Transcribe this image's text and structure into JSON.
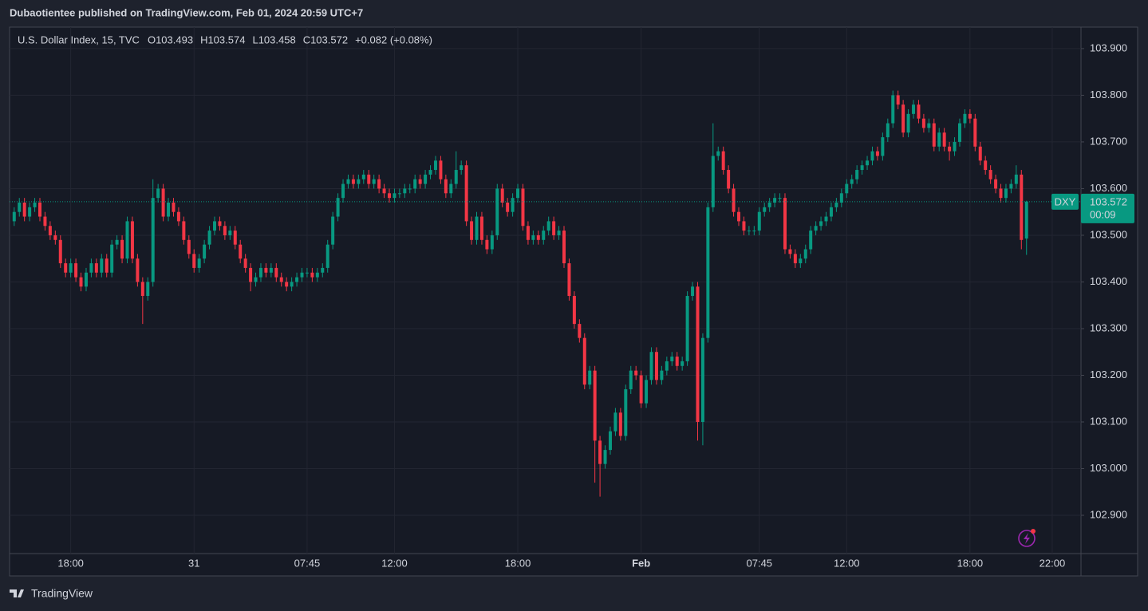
{
  "header": {
    "text": "Dubaotientee published on TradingView.com, Feb 01, 2024 20:59 UTC+7"
  },
  "footer": {
    "brand": "TradingView"
  },
  "chart_data": {
    "type": "candlestick",
    "title": "U.S. Dollar Index, 15, TVC",
    "symbol": "DXY",
    "countdown": "00:09",
    "change": "+0.082 (+0.08%)",
    "ohlc_labels": [
      "O",
      "H",
      "L",
      "C"
    ],
    "up_color": "#089981",
    "down_color": "#f23645",
    "grid": true,
    "ylim": [
      102.818,
      103.946
    ],
    "yticks": [
      {
        "value": 102.9,
        "label": "102.900"
      },
      {
        "value": 103.0,
        "label": "103.000"
      },
      {
        "value": 103.1,
        "label": "103.100"
      },
      {
        "value": 103.2,
        "label": "103.200"
      },
      {
        "value": 103.3,
        "label": "103.300"
      },
      {
        "value": 103.4,
        "label": "103.400"
      },
      {
        "value": 103.5,
        "label": "103.500"
      },
      {
        "value": 103.6,
        "label": "103.600"
      },
      {
        "value": 103.7,
        "label": "103.700"
      },
      {
        "value": 103.8,
        "label": "103.800"
      },
      {
        "value": 103.9,
        "label": "103.900"
      }
    ],
    "xlim": [
      -0.9,
      207.6
    ],
    "xticks": [
      {
        "value": 11,
        "label": "18:00"
      },
      {
        "value": 35,
        "label": "31"
      },
      {
        "value": 57,
        "label": "07:45"
      },
      {
        "value": 74,
        "label": "12:00"
      },
      {
        "value": 98,
        "label": "18:00"
      },
      {
        "value": 122,
        "label": "Feb"
      },
      {
        "value": 145,
        "label": "07:45"
      },
      {
        "value": 162,
        "label": "12:00"
      },
      {
        "value": 186,
        "label": "18:00"
      },
      {
        "value": 202,
        "label": "22:00"
      }
    ],
    "open": [
      103.53,
      103.55,
      103.57,
      103.54,
      103.56,
      103.57,
      103.54,
      103.52,
      103.5,
      103.49,
      103.44,
      103.42,
      103.44,
      103.41,
      103.39,
      103.42,
      103.44,
      103.42,
      103.45,
      103.42,
      103.48,
      103.49,
      103.45,
      103.53,
      103.45,
      103.4,
      103.37,
      103.4,
      103.58,
      103.6,
      103.54,
      103.57,
      103.55,
      103.53,
      103.49,
      103.46,
      103.43,
      103.45,
      103.48,
      103.51,
      103.53,
      103.52,
      103.5,
      103.51,
      103.48,
      103.45,
      103.43,
      103.4,
      103.41,
      103.43,
      103.42,
      103.43,
      103.41,
      103.4,
      103.39,
      103.4,
      103.41,
      103.42,
      103.42,
      103.41,
      103.42,
      103.43,
      103.48,
      103.54,
      103.58,
      103.61,
      103.62,
      103.61,
      103.62,
      103.63,
      103.61,
      103.62,
      103.6,
      103.59,
      103.58,
      103.59,
      103.59,
      103.6,
      103.6,
      103.62,
      103.61,
      103.63,
      103.64,
      103.66,
      103.62,
      103.59,
      103.61,
      103.64,
      103.65,
      103.53,
      103.49,
      103.54,
      103.49,
      103.47,
      103.5,
      103.6,
      103.57,
      103.55,
      103.58,
      103.6,
      103.52,
      103.49,
      103.5,
      103.49,
      103.51,
      103.53,
      103.5,
      103.51,
      103.44,
      103.37,
      103.31,
      103.28,
      103.18,
      103.21,
      103.06,
      103.01,
      103.04,
      103.08,
      103.12,
      103.07,
      103.17,
      103.21,
      103.2,
      103.14,
      103.19,
      103.25,
      103.19,
      103.21,
      103.23,
      103.24,
      103.22,
      103.23,
      103.37,
      103.39,
      103.1,
      103.28,
      103.56,
      103.67,
      103.68,
      103.64,
      103.6,
      103.55,
      103.53,
      103.51,
      103.51,
      103.51,
      103.55,
      103.56,
      103.57,
      103.58,
      103.58,
      103.47,
      103.46,
      103.44,
      103.45,
      103.47,
      103.51,
      103.52,
      103.53,
      103.54,
      103.56,
      103.57,
      103.59,
      103.61,
      103.62,
      103.64,
      103.65,
      103.66,
      103.68,
      103.67,
      103.71,
      103.74,
      103.8,
      103.78,
      103.72,
      103.76,
      103.78,
      103.75,
      103.73,
      103.74,
      103.69,
      103.72,
      103.69,
      103.68,
      103.7,
      103.74,
      103.76,
      103.75,
      103.69,
      103.66,
      103.64,
      103.62,
      103.6,
      103.58,
      103.6,
      103.61,
      103.63,
      103.493
    ],
    "high": [
      103.56,
      103.58,
      103.58,
      103.57,
      103.58,
      103.58,
      103.55,
      103.53,
      103.51,
      103.5,
      103.45,
      103.45,
      103.45,
      103.42,
      103.43,
      103.45,
      103.45,
      103.46,
      103.46,
      103.49,
      103.5,
      103.5,
      103.54,
      103.54,
      103.46,
      103.41,
      103.41,
      103.62,
      103.61,
      103.61,
      103.58,
      103.58,
      103.56,
      103.54,
      103.5,
      103.47,
      103.46,
      103.49,
      103.52,
      103.54,
      103.54,
      103.53,
      103.52,
      103.52,
      103.49,
      103.46,
      103.44,
      103.42,
      103.44,
      103.44,
      103.44,
      103.44,
      103.42,
      103.41,
      103.41,
      103.42,
      103.43,
      103.43,
      103.43,
      103.43,
      103.44,
      103.49,
      103.55,
      103.59,
      103.62,
      103.63,
      103.63,
      103.63,
      103.64,
      103.64,
      103.63,
      103.63,
      103.61,
      103.6,
      103.6,
      103.6,
      103.61,
      103.61,
      103.63,
      103.63,
      103.64,
      103.65,
      103.67,
      103.67,
      103.63,
      103.62,
      103.68,
      103.66,
      103.66,
      103.54,
      103.55,
      103.55,
      103.5,
      103.51,
      103.61,
      103.61,
      103.58,
      103.59,
      103.61,
      103.61,
      103.53,
      103.51,
      103.51,
      103.52,
      103.54,
      103.54,
      103.52,
      103.52,
      103.45,
      103.38,
      103.32,
      103.29,
      103.22,
      103.22,
      103.07,
      103.05,
      103.09,
      103.13,
      103.13,
      103.18,
      103.22,
      103.22,
      103.21,
      103.2,
      103.26,
      103.26,
      103.22,
      103.24,
      103.25,
      103.25,
      103.24,
      103.38,
      103.4,
      103.4,
      103.29,
      103.57,
      103.74,
      103.69,
      103.69,
      103.65,
      103.61,
      103.56,
      103.54,
      103.52,
      103.52,
      103.56,
      103.57,
      103.58,
      103.59,
      103.59,
      103.59,
      103.48,
      103.47,
      103.46,
      103.48,
      103.52,
      103.53,
      103.54,
      103.55,
      103.57,
      103.58,
      103.6,
      103.62,
      103.63,
      103.65,
      103.66,
      103.67,
      103.69,
      103.69,
      103.72,
      103.75,
      103.81,
      103.81,
      103.79,
      103.77,
      103.79,
      103.79,
      103.76,
      103.75,
      103.75,
      103.73,
      103.73,
      103.7,
      103.71,
      103.75,
      103.77,
      103.77,
      103.76,
      103.7,
      103.67,
      103.65,
      103.63,
      103.61,
      103.61,
      103.62,
      103.65,
      103.64,
      103.574
    ],
    "low": [
      103.52,
      103.54,
      103.53,
      103.53,
      103.55,
      103.53,
      103.51,
      103.49,
      103.48,
      103.43,
      103.41,
      103.41,
      103.4,
      103.38,
      103.38,
      103.41,
      103.41,
      103.41,
      103.41,
      103.41,
      103.47,
      103.44,
      103.44,
      103.44,
      103.39,
      103.31,
      103.36,
      103.39,
      103.57,
      103.53,
      103.53,
      103.54,
      103.52,
      103.48,
      103.45,
      103.42,
      103.42,
      103.44,
      103.47,
      103.5,
      103.51,
      103.49,
      103.49,
      103.47,
      103.44,
      103.42,
      103.38,
      103.39,
      103.4,
      103.41,
      103.41,
      103.4,
      103.39,
      103.38,
      103.38,
      103.39,
      103.4,
      103.41,
      103.4,
      103.4,
      103.41,
      103.42,
      103.47,
      103.53,
      103.57,
      103.6,
      103.6,
      103.6,
      103.61,
      103.6,
      103.6,
      103.59,
      103.58,
      103.57,
      103.57,
      103.58,
      103.58,
      103.59,
      103.59,
      103.6,
      103.6,
      103.62,
      103.63,
      103.61,
      103.58,
      103.58,
      103.6,
      103.63,
      103.52,
      103.48,
      103.48,
      103.48,
      103.46,
      103.46,
      103.49,
      103.56,
      103.54,
      103.54,
      103.57,
      103.51,
      103.48,
      103.48,
      103.48,
      103.48,
      103.5,
      103.49,
      103.49,
      103.43,
      103.36,
      103.3,
      103.27,
      103.17,
      103.17,
      102.97,
      102.94,
      103.0,
      103.03,
      103.07,
      103.06,
      103.06,
      103.16,
      103.19,
      103.13,
      103.13,
      103.18,
      103.18,
      103.18,
      103.2,
      103.22,
      103.21,
      103.21,
      103.22,
      103.36,
      103.06,
      103.05,
      103.27,
      103.55,
      103.66,
      103.63,
      103.59,
      103.54,
      103.52,
      103.5,
      103.5,
      103.5,
      103.5,
      103.54,
      103.55,
      103.56,
      103.57,
      103.46,
      103.45,
      103.43,
      103.43,
      103.44,
      103.46,
      103.5,
      103.51,
      103.52,
      103.53,
      103.55,
      103.56,
      103.58,
      103.6,
      103.61,
      103.63,
      103.64,
      103.65,
      103.66,
      103.66,
      103.7,
      103.73,
      103.77,
      103.71,
      103.71,
      103.75,
      103.74,
      103.72,
      103.72,
      103.68,
      103.68,
      103.68,
      103.66,
      103.67,
      103.69,
      103.73,
      103.74,
      103.68,
      103.65,
      103.63,
      103.61,
      103.59,
      103.57,
      103.57,
      103.59,
      103.6,
      103.47,
      103.458
    ],
    "close": [
      103.55,
      103.57,
      103.54,
      103.56,
      103.57,
      103.54,
      103.52,
      103.5,
      103.49,
      103.44,
      103.42,
      103.44,
      103.41,
      103.39,
      103.42,
      103.44,
      103.42,
      103.45,
      103.42,
      103.48,
      103.49,
      103.45,
      103.53,
      103.45,
      103.4,
      103.37,
      103.4,
      103.58,
      103.6,
      103.54,
      103.57,
      103.55,
      103.53,
      103.49,
      103.46,
      103.43,
      103.45,
      103.48,
      103.51,
      103.53,
      103.52,
      103.5,
      103.51,
      103.48,
      103.45,
      103.43,
      103.4,
      103.41,
      103.43,
      103.42,
      103.43,
      103.41,
      103.4,
      103.39,
      103.4,
      103.41,
      103.42,
      103.42,
      103.41,
      103.42,
      103.43,
      103.48,
      103.54,
      103.58,
      103.61,
      103.62,
      103.61,
      103.62,
      103.63,
      103.61,
      103.62,
      103.6,
      103.59,
      103.58,
      103.59,
      103.59,
      103.6,
      103.6,
      103.62,
      103.61,
      103.63,
      103.64,
      103.66,
      103.62,
      103.59,
      103.61,
      103.64,
      103.65,
      103.53,
      103.49,
      103.54,
      103.49,
      103.47,
      103.5,
      103.6,
      103.57,
      103.55,
      103.58,
      103.6,
      103.52,
      103.49,
      103.5,
      103.49,
      103.51,
      103.53,
      103.5,
      103.51,
      103.44,
      103.37,
      103.31,
      103.28,
      103.18,
      103.21,
      103.06,
      103.01,
      103.04,
      103.08,
      103.12,
      103.07,
      103.17,
      103.21,
      103.2,
      103.14,
      103.19,
      103.25,
      103.19,
      103.21,
      103.23,
      103.24,
      103.22,
      103.23,
      103.37,
      103.39,
      103.1,
      103.28,
      103.56,
      103.67,
      103.68,
      103.64,
      103.6,
      103.55,
      103.53,
      103.51,
      103.51,
      103.51,
      103.55,
      103.56,
      103.57,
      103.58,
      103.58,
      103.47,
      103.46,
      103.44,
      103.45,
      103.47,
      103.51,
      103.52,
      103.53,
      103.54,
      103.56,
      103.57,
      103.59,
      103.61,
      103.62,
      103.64,
      103.65,
      103.66,
      103.68,
      103.67,
      103.71,
      103.74,
      103.8,
      103.78,
      103.72,
      103.76,
      103.78,
      103.75,
      103.73,
      103.74,
      103.69,
      103.72,
      103.69,
      103.68,
      103.7,
      103.74,
      103.76,
      103.75,
      103.69,
      103.66,
      103.64,
      103.62,
      103.6,
      103.58,
      103.6,
      103.61,
      103.63,
      103.49,
      103.572
    ]
  }
}
